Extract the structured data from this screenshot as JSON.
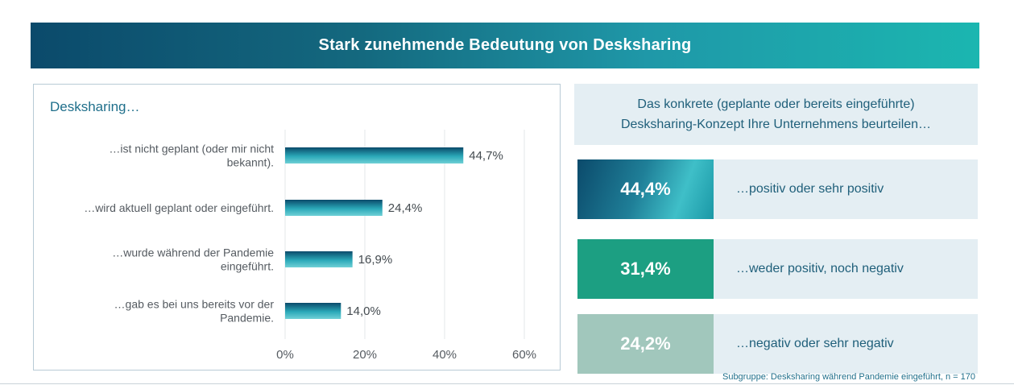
{
  "header": {
    "title": "Stark zunehmende Bedeutung von Desksharing"
  },
  "left": {
    "heading": "Desksharing…"
  },
  "chart_data": {
    "type": "bar",
    "orientation": "horizontal",
    "categories": [
      [
        "…ist nicht geplant (oder mir nicht",
        "bekannt)."
      ],
      [
        "…wird aktuell geplant oder eingeführt."
      ],
      [
        "…wurde während der Pandemie",
        "eingeführt."
      ],
      [
        "…gab es bei uns bereits vor der",
        "Pandemie."
      ]
    ],
    "values": [
      44.7,
      24.4,
      16.9,
      14.0
    ],
    "value_labels": [
      "44,7%",
      "24,4%",
      "16,9%",
      "14,0%"
    ],
    "xlim": [
      0,
      60
    ],
    "ticks": [
      0,
      20,
      40,
      60
    ],
    "tick_labels": [
      "0%",
      "20%",
      "40%",
      "60%"
    ],
    "grid": true,
    "bar_color": "#1a8aa0"
  },
  "right": {
    "question_line1": "Das konkrete (geplante oder bereits eingeführte)",
    "question_line2": "Desksharing-Konzept Ihre Unternehmens beurteilen…",
    "results": [
      {
        "pct": "44,4%",
        "label": "…positiv oder sehr positiv",
        "color": "#1e7f95"
      },
      {
        "pct": "31,4%",
        "label": "…weder positiv, noch negativ",
        "color": "#1c9f82"
      },
      {
        "pct": "24,2%",
        "label": "…negativ oder sehr negativ",
        "color": "#a1c7bc"
      }
    ]
  },
  "footnote": "Subgruppe: Desksharing während Pandemie eingeführt, n = 170"
}
